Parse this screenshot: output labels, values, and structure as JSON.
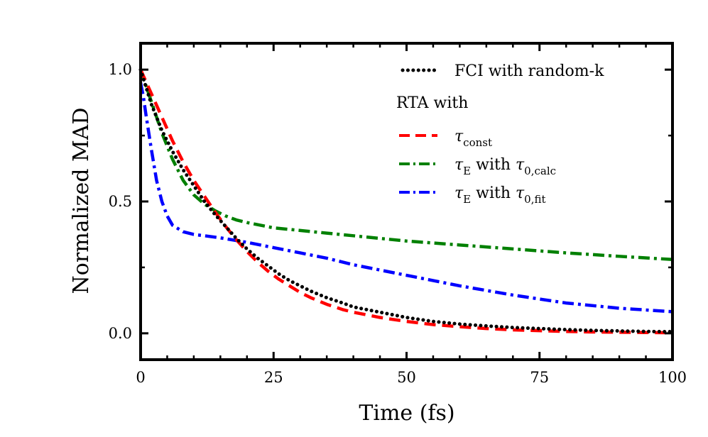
{
  "chart_data": {
    "type": "line",
    "title": "",
    "xlabel": "Time (fs)",
    "ylabel": "Normalized MAD",
    "xlim": [
      0,
      100
    ],
    "ylim": [
      -0.1,
      1.1
    ],
    "xticks": [
      0,
      25,
      50,
      75,
      100
    ],
    "yticks": [
      0.0,
      0.5,
      1.0
    ],
    "xtick_labels": [
      "0",
      "25",
      "50",
      "75",
      "100"
    ],
    "ytick_labels": [
      "0.0",
      "0.5",
      "1.0"
    ],
    "grid": false,
    "legend_position": "top-right",
    "legend_title": "RTA with",
    "series": [
      {
        "name": "FCI with random-k",
        "style": "dotted",
        "color": "#000000",
        "x": [
          0,
          2,
          4,
          6,
          8,
          10,
          12,
          14,
          16,
          18,
          20,
          22,
          24,
          26,
          28,
          30,
          32,
          35,
          38,
          40,
          45,
          50,
          55,
          60,
          65,
          70,
          75,
          80,
          85,
          90,
          95,
          100
        ],
        "y": [
          1.0,
          0.87,
          0.77,
          0.69,
          0.62,
          0.56,
          0.5,
          0.45,
          0.405,
          0.36,
          0.32,
          0.285,
          0.255,
          0.225,
          0.2,
          0.18,
          0.16,
          0.135,
          0.115,
          0.1,
          0.08,
          0.06,
          0.045,
          0.035,
          0.028,
          0.022,
          0.018,
          0.014,
          0.011,
          0.009,
          0.007,
          0.006
        ]
      },
      {
        "name": "τconst",
        "legend_main": "τ",
        "legend_sub": "const",
        "style": "dashed",
        "color": "#ff0000",
        "x": [
          0,
          2,
          4,
          6,
          8,
          10,
          12,
          14,
          16,
          18,
          20,
          22,
          24,
          26,
          28,
          30,
          32,
          35,
          38,
          40,
          45,
          50,
          55,
          60,
          65,
          70,
          75,
          80,
          85,
          90,
          95,
          100
        ],
        "y": [
          1.0,
          0.91,
          0.82,
          0.73,
          0.65,
          0.58,
          0.52,
          0.46,
          0.405,
          0.355,
          0.31,
          0.27,
          0.235,
          0.205,
          0.18,
          0.155,
          0.135,
          0.11,
          0.09,
          0.08,
          0.06,
          0.045,
          0.033,
          0.025,
          0.018,
          0.013,
          0.01,
          0.007,
          0.005,
          0.004,
          0.003,
          0.002
        ]
      },
      {
        "name": "τE with τ0,calc",
        "legend_main": "τ",
        "legend_sub": "E",
        "legend_mid": " with ",
        "legend_main2": "τ",
        "legend_sub2": "0,calc",
        "style": "dashdot",
        "color": "#008000",
        "x": [
          0,
          2,
          4,
          6,
          8,
          10,
          12,
          14,
          16,
          18,
          20,
          25,
          30,
          35,
          40,
          50,
          60,
          70,
          80,
          90,
          100
        ],
        "y": [
          1.0,
          0.88,
          0.76,
          0.66,
          0.58,
          0.525,
          0.49,
          0.465,
          0.445,
          0.43,
          0.42,
          0.4,
          0.39,
          0.38,
          0.37,
          0.35,
          0.335,
          0.32,
          0.305,
          0.292,
          0.28
        ]
      },
      {
        "name": "τE with τ0,fit",
        "legend_main": "τ",
        "legend_sub": "E",
        "legend_mid": " with ",
        "legend_main2": "τ",
        "legend_sub2": "0,fit",
        "style": "dashdot",
        "color": "#0000ff",
        "x": [
          0,
          0.5,
          1,
          2,
          3,
          4,
          5,
          6,
          8,
          10,
          12,
          15,
          20,
          25,
          30,
          35,
          40,
          50,
          60,
          70,
          80,
          90,
          100
        ],
        "y": [
          0.95,
          0.9,
          0.83,
          0.7,
          0.58,
          0.5,
          0.445,
          0.41,
          0.385,
          0.375,
          0.37,
          0.362,
          0.345,
          0.325,
          0.305,
          0.285,
          0.26,
          0.22,
          0.18,
          0.145,
          0.115,
          0.095,
          0.082
        ]
      }
    ]
  }
}
